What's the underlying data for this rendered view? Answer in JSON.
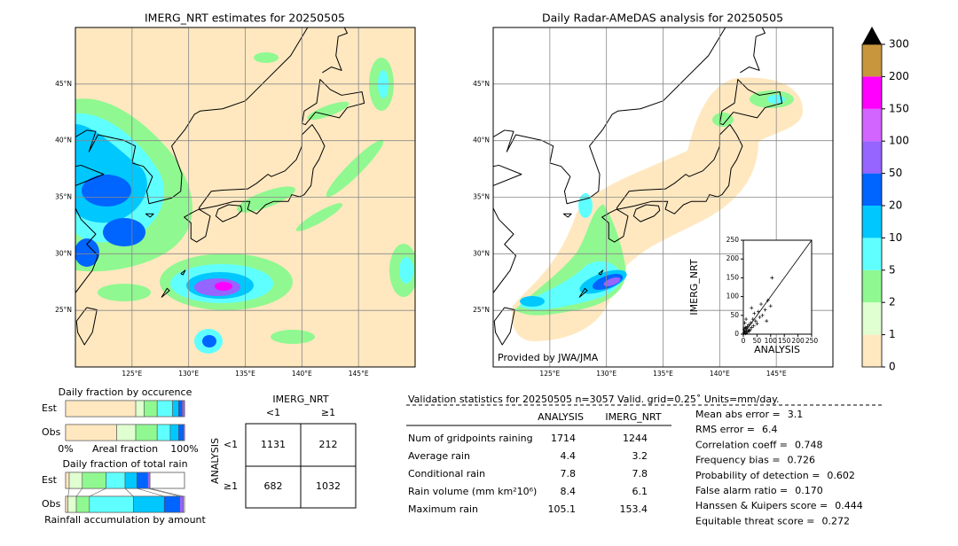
{
  "left_map": {
    "title": "IMERG_NRT estimates for 20250505",
    "lonlim": [
      120,
      150
    ],
    "latlim": [
      20,
      50
    ],
    "lon_ticks": [
      {
        "value": 125,
        "label": "125°E"
      },
      {
        "value": 130,
        "label": "130°E"
      },
      {
        "value": 135,
        "label": "135°E"
      },
      {
        "value": 140,
        "label": "140°E"
      },
      {
        "value": 145,
        "label": "145°E"
      }
    ],
    "lat_ticks": [
      {
        "value": 45,
        "label": "45°N"
      },
      {
        "value": 40,
        "label": "40°N"
      },
      {
        "value": 35,
        "label": "35°N"
      },
      {
        "value": 30,
        "label": "30°N"
      },
      {
        "value": 25,
        "label": "25°N"
      }
    ]
  },
  "right_map": {
    "title": "Daily Radar-AMeDAS analysis for 20250505",
    "credit": "Provided by JWA/JMA",
    "lonlim": [
      120,
      150
    ],
    "latlim": [
      20,
      50
    ],
    "lon_ticks": [
      {
        "value": 125,
        "label": "125°E"
      },
      {
        "value": 130,
        "label": "130°E"
      },
      {
        "value": 135,
        "label": "135°E"
      },
      {
        "value": 140,
        "label": "140°E"
      },
      {
        "value": 145,
        "label": "145°E"
      }
    ],
    "lat_ticks": [
      {
        "value": 45,
        "label": "45°N"
      },
      {
        "value": 40,
        "label": "40°N"
      },
      {
        "value": 35,
        "label": "35°N"
      },
      {
        "value": 30,
        "label": "30°N"
      },
      {
        "value": 25,
        "label": "25°N"
      }
    ],
    "inset": {
      "type": "scatter",
      "xlabel": "ANALYSIS",
      "ylabel": "IMERG_NRT",
      "xlim": [
        0,
        250
      ],
      "ylim": [
        0,
        250
      ],
      "xticks": [
        0,
        50,
        100,
        150,
        200,
        250
      ],
      "yticks": [
        0,
        50,
        100,
        150,
        200,
        250
      ],
      "x": [
        2,
        5,
        8,
        10,
        12,
        15,
        18,
        20,
        22,
        25,
        28,
        30,
        35,
        38,
        40,
        45,
        50,
        55,
        60,
        65,
        70,
        80,
        85,
        90,
        100,
        105,
        10,
        5,
        15,
        30,
        3,
        7
      ],
      "y": [
        3,
        8,
        2,
        15,
        5,
        20,
        10,
        25,
        8,
        12,
        30,
        18,
        40,
        22,
        55,
        35,
        28,
        60,
        45,
        80,
        50,
        65,
        35,
        90,
        75,
        150,
        40,
        30,
        5,
        70,
        12,
        18
      ]
    }
  },
  "colorbar": {
    "levels": [
      0,
      1,
      2,
      5,
      10,
      20,
      50,
      100,
      150,
      200,
      300
    ],
    "colors": [
      "#ffe8c0",
      "#e0ffd0",
      "#90f890",
      "#60ffff",
      "#00c8ff",
      "#0064ff",
      "#9664ff",
      "#d264ff",
      "#ff00ff",
      "#c8963c"
    ],
    "extend_color": "#000000"
  },
  "occurrence": {
    "title": "Daily fraction by occurence",
    "xlabel": "Areal fraction",
    "xlim": [
      0,
      100
    ],
    "xticks": [
      {
        "value": 0,
        "label": "0%"
      },
      {
        "value": 100,
        "label": "100%"
      }
    ],
    "series": [
      {
        "name": "Est",
        "values": [
          59,
          7,
          11,
          13,
          5,
          3,
          2
        ]
      },
      {
        "name": "Obs",
        "values": [
          43,
          16,
          18,
          11,
          7,
          4,
          1
        ]
      }
    ]
  },
  "total_rain": {
    "title": "Daily fraction of total rain",
    "xlabel": "Rainfall accumulation by amount",
    "xlim": [
      0,
      100
    ],
    "series": [
      {
        "name": "Est",
        "values": [
          3,
          11,
          20,
          16,
          10,
          9,
          2
        ]
      },
      {
        "name": "Obs",
        "values": [
          2,
          7,
          11,
          37,
          26,
          13,
          3
        ]
      }
    ]
  },
  "contingency": {
    "title": "IMERG_NRT",
    "row_title": "ANALYSIS",
    "columns": [
      "<1",
      "≥1"
    ],
    "rows": [
      {
        "name": "<1",
        "values": [
          1131,
          212
        ]
      },
      {
        "name": "≥1",
        "values": [
          682,
          1032
        ]
      }
    ]
  },
  "validation": {
    "title": "Validation statistics for 20250505  n=3057 Valid. grid=0.25˚ Units=mm/day.",
    "columns": [
      "ANALYSIS",
      "IMERG_NRT"
    ],
    "rows": [
      {
        "name": "Num of gridpoints raining",
        "values": [
          1714,
          1244
        ]
      },
      {
        "name": "Average rain",
        "values": [
          4.4,
          3.2
        ]
      },
      {
        "name": "Conditional rain",
        "values": [
          7.8,
          7.8
        ]
      },
      {
        "name": "Rain volume (mm km²10⁶)",
        "values": [
          8.4,
          6.1
        ]
      },
      {
        "name": "Maximum rain",
        "values": [
          105.1,
          153.4
        ]
      }
    ]
  },
  "scores": [
    {
      "name": "Mean abs error =",
      "value": 3.1
    },
    {
      "name": "RMS error =",
      "value": 6.4
    },
    {
      "name": "Correlation coeff =",
      "value": 0.748
    },
    {
      "name": "Frequency bias =",
      "value": 0.726
    },
    {
      "name": "Probability of detection =",
      "value": 0.602
    },
    {
      "name": "False alarm ratio =",
      "value": "0.170"
    },
    {
      "name": "Hanssen & Kuipers score =",
      "value": 0.444
    },
    {
      "name": "Equitable threat score =",
      "value": 0.272
    }
  ]
}
